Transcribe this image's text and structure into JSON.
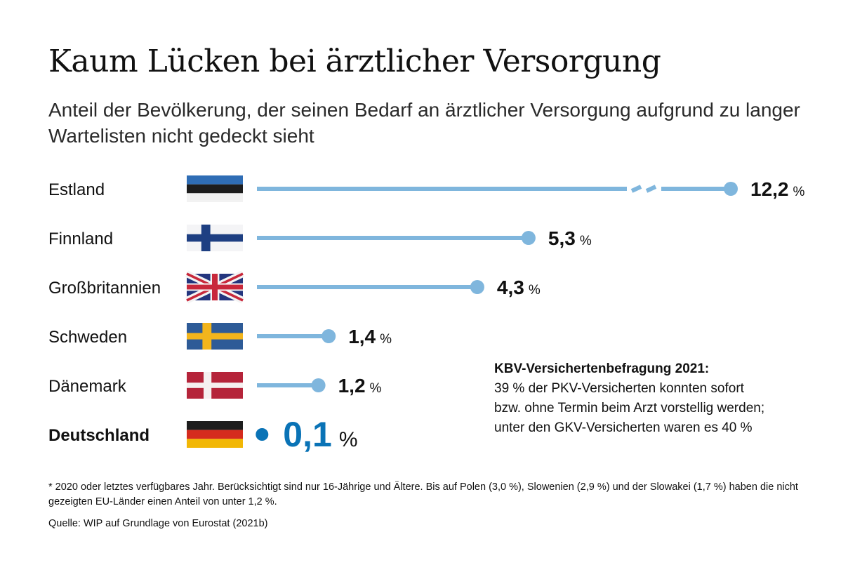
{
  "title": "Kaum Lücken bei ärztlicher Versorgung",
  "subtitle": "Anteil der Bevölkerung, der seinen Bedarf an ärztlicher Versorgung aufgrund zu langer Wartelisten nicht gedeckt sieht",
  "chart_data": {
    "type": "bar",
    "style": "lollipop",
    "categories": [
      "Estland",
      "Finnland",
      "Großbritannien",
      "Schweden",
      "Dänemark",
      "Deutschland"
    ],
    "values": [
      12.2,
      5.3,
      4.3,
      1.4,
      1.2,
      0.1
    ],
    "value_labels": [
      "12,2",
      "5,3",
      "4,3",
      "1,4",
      "1,2",
      "0,1"
    ],
    "unit": "%",
    "axis_break_on": "Estland",
    "highlight": "Deutschland",
    "colors": {
      "bar": "#7fb6dd",
      "highlight": "#0a73b6",
      "text": "#111111"
    }
  },
  "flags": [
    {
      "country": "Estland",
      "icon": "flag-estonia-icon",
      "stripes": [
        "#2f6db5",
        "#1d1d1d",
        "#f2f2f2"
      ]
    },
    {
      "country": "Finnland",
      "icon": "flag-finland-icon"
    },
    {
      "country": "Großbritannien",
      "icon": "flag-uk-icon"
    },
    {
      "country": "Schweden",
      "icon": "flag-sweden-icon"
    },
    {
      "country": "Dänemark",
      "icon": "flag-denmark-icon"
    },
    {
      "country": "Deutschland",
      "icon": "flag-germany-icon",
      "stripes": [
        "#1d1d1d",
        "#d52b1e",
        "#f2b705"
      ]
    }
  ],
  "note": {
    "heading": "KBV-Versichertenbefragung 2021:",
    "lines": [
      "39 % der PKV-Versicherten konnten sofort",
      "bzw. ohne Termin beim Arzt vorstellig werden;",
      "unter den GKV-Versicherten waren es 40 %"
    ]
  },
  "footnote": "* 2020 oder letztes verfügbares Jahr. Berücksichtigt sind nur 16-Jährige und Ältere. Bis auf Polen (3,0 %), Slowenien (2,9 %) und der Slowakei (1,7 %) haben die nicht gezeigten EU-Länder einen Anteil von unter 1,2 %.",
  "source": "Quelle: WIP auf Grundlage von Eurostat (2021b)"
}
